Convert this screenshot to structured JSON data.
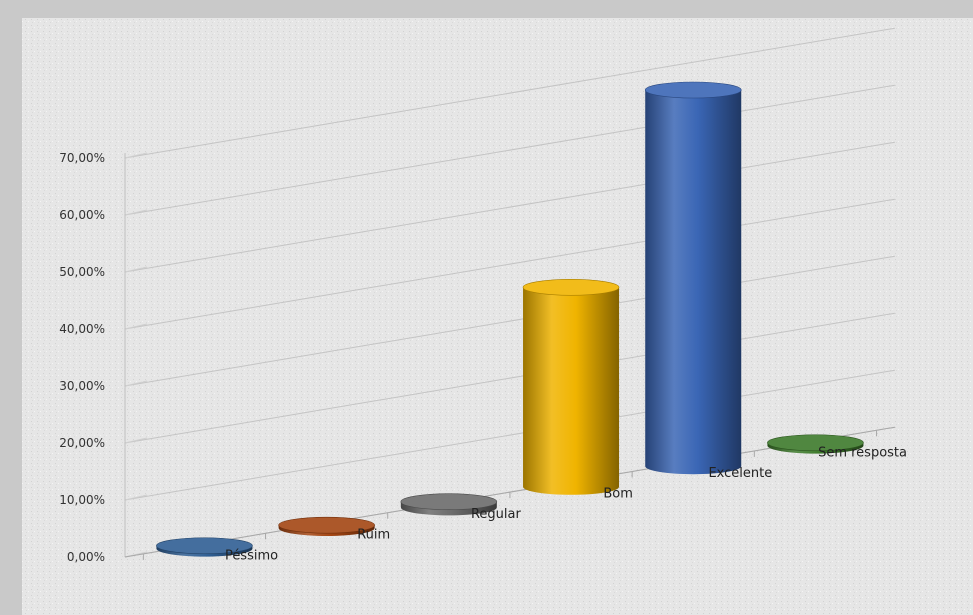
{
  "chart_data": {
    "type": "bar",
    "style": "3d-cylinder",
    "categories": [
      "Péssimo",
      "Ruim",
      "Regular",
      "Bom",
      "Excelente",
      "Sem resposta"
    ],
    "values": [
      0.5,
      0.5,
      1.0,
      35.0,
      66.0,
      0.5
    ],
    "colors": [
      "#2f5e93",
      "#a34512",
      "#6b6b6b",
      "#f0b400",
      "#3a66b5",
      "#3d7a2b"
    ],
    "ylim": [
      0,
      70
    ],
    "yticks": [
      "0,00%",
      "10,00%",
      "20,00%",
      "30,00%",
      "40,00%",
      "50,00%",
      "60,00%",
      "70,00%"
    ],
    "grid": true,
    "legend": "none"
  }
}
